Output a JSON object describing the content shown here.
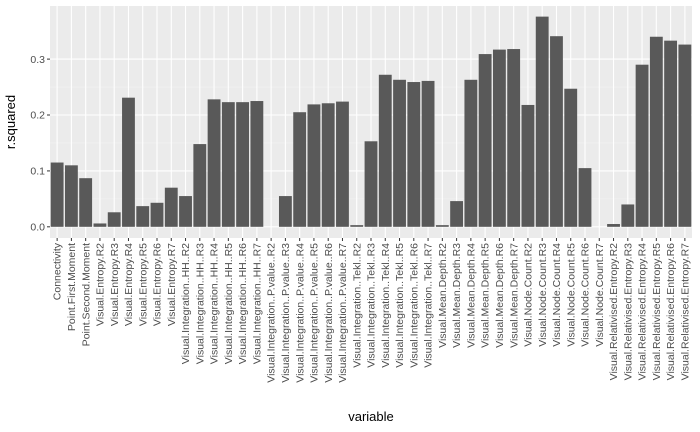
{
  "chart_data": {
    "type": "bar",
    "xlabel": "variable",
    "ylabel": "r.squared",
    "ylim": [
      -0.02,
      0.395
    ],
    "yticks": [
      0.0,
      0.1,
      0.2,
      0.3
    ],
    "ytick_labels": [
      "0.0",
      "0.1",
      "0.2",
      "0.3"
    ],
    "grid": true,
    "colors": {
      "bar": "#595959",
      "panel": "#ebebeb",
      "grid_major": "#ffffff",
      "grid_minor": "#f3f3f3"
    },
    "categories": [
      "Connectivity",
      "Point.First.Moment",
      "Point.Second.Moment",
      "Visual.Entropy.R2",
      "Visual.Entropy.R3",
      "Visual.Entropy.R4",
      "Visual.Entropy.R5",
      "Visual.Entropy.R6",
      "Visual.Entropy.R7",
      "Visual.Integration..HH..R2",
      "Visual.Integration..HH..R3",
      "Visual.Integration..HH..R4",
      "Visual.Integration..HH..R5",
      "Visual.Integration..HH..R6",
      "Visual.Integration..HH..R7",
      "Visual.Integration..P.value..R2",
      "Visual.Integration..P.value..R3",
      "Visual.Integration..P.value..R4",
      "Visual.Integration..P.value..R5",
      "Visual.Integration..P.value..R6",
      "Visual.Integration..P.value..R7",
      "Visual.Integration..Tekl..R2",
      "Visual.Integration..Tekl..R3",
      "Visual.Integration..Tekl..R4",
      "Visual.Integration..Tekl..R5",
      "Visual.Integration..Tekl..R6",
      "Visual.Integration..Tekl..R7",
      "Visual.Mean.Depth.R2",
      "Visual.Mean.Depth.R3",
      "Visual.Mean.Depth.R4",
      "Visual.Mean.Depth.R5",
      "Visual.Mean.Depth.R6",
      "Visual.Mean.Depth.R7",
      "Visual.Node.Count.R2",
      "Visual.Node.Count.R3",
      "Visual.Node.Count.R4",
      "Visual.Node.Count.R5",
      "Visual.Node.Count.R6",
      "Visual.Node.Count.R7",
      "Visual.Relativised.Entropy.R2",
      "Visual.Relativised.Entropy.R3",
      "Visual.Relativised.Entropy.R4",
      "Visual.Relativised.Entropy.R5",
      "Visual.Relativised.Entropy.R6",
      "Visual.Relativised.Entropy.R7"
    ],
    "values": [
      0.115,
      0.11,
      0.087,
      0.006,
      0.026,
      0.231,
      0.037,
      0.043,
      0.07,
      0.055,
      0.148,
      0.228,
      0.223,
      0.223,
      0.225,
      0.0,
      0.055,
      0.205,
      0.219,
      0.221,
      0.224,
      0.003,
      0.153,
      0.272,
      0.263,
      0.259,
      0.261,
      0.003,
      0.046,
      0.263,
      0.309,
      0.317,
      0.318,
      0.218,
      0.376,
      0.341,
      0.247,
      0.105,
      0.0,
      0.005,
      0.04,
      0.29,
      0.34,
      0.333,
      0.326
    ]
  }
}
